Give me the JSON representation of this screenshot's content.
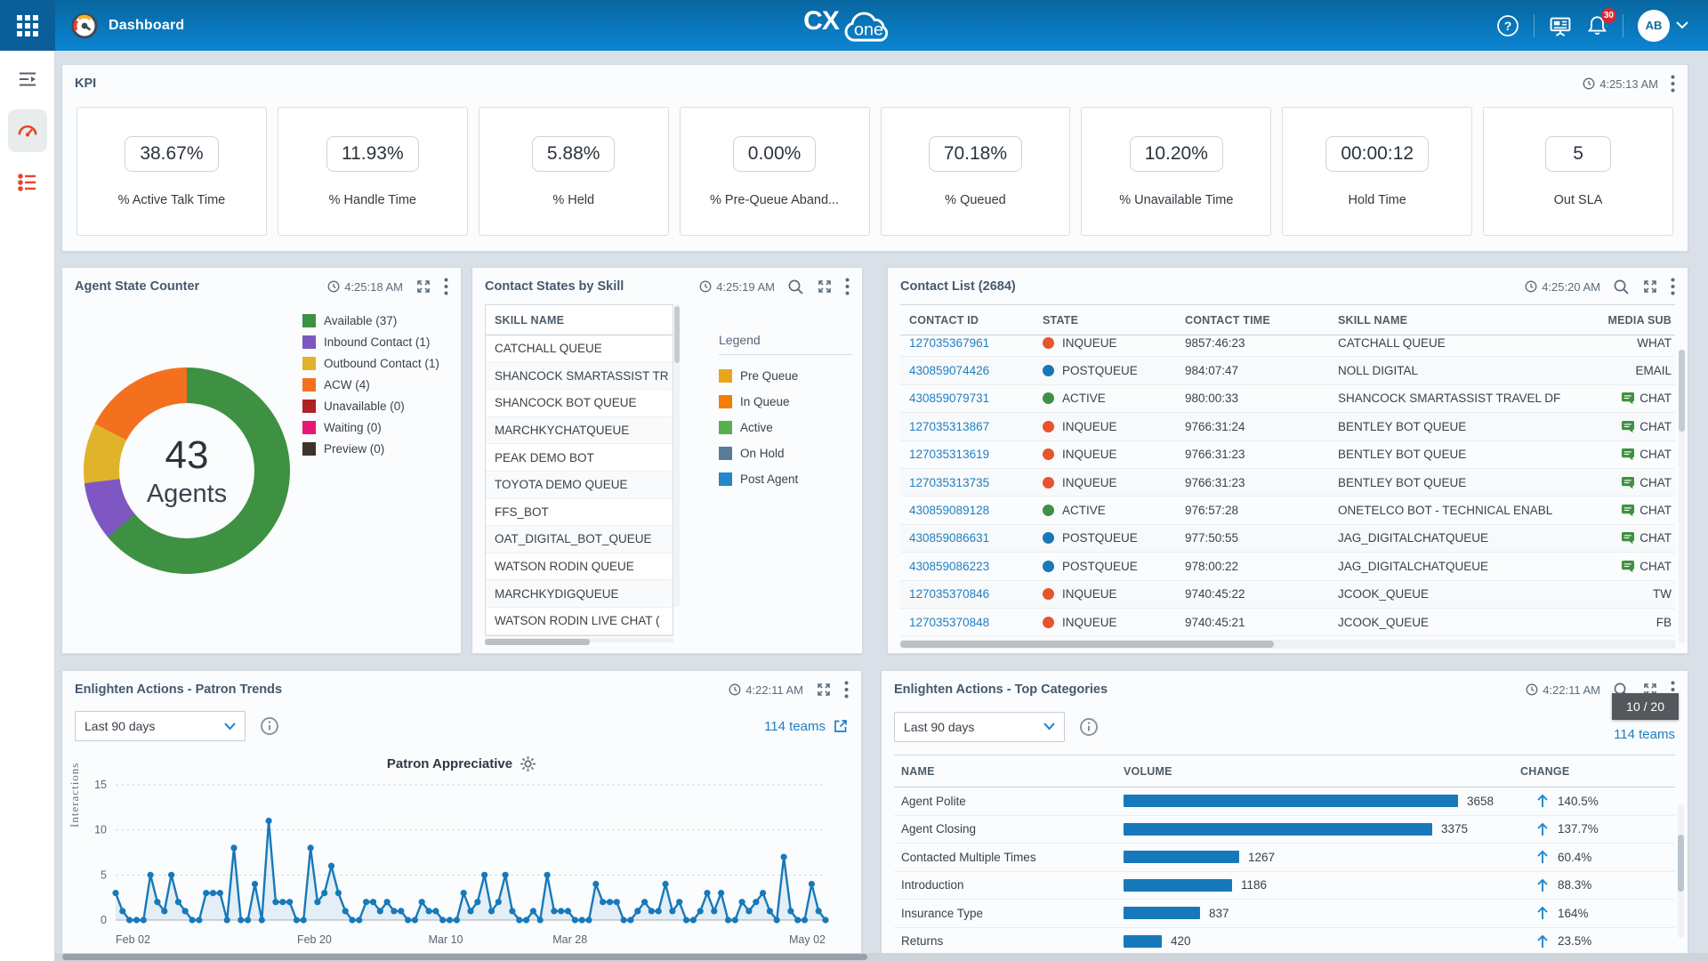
{
  "header": {
    "title": "Dashboard",
    "logo_cx": "CX",
    "logo_one": "one",
    "notification_count": "30",
    "avatar": "AB"
  },
  "kpi_panel": {
    "title": "KPI",
    "timestamp": "4:25:13 AM",
    "cards": [
      {
        "value": "38.67%",
        "label": "% Active Talk Time"
      },
      {
        "value": "11.93%",
        "label": "% Handle Time"
      },
      {
        "value": "5.88%",
        "label": "% Held"
      },
      {
        "value": "0.00%",
        "label": "% Pre-Queue Aband..."
      },
      {
        "value": "70.18%",
        "label": "% Queued"
      },
      {
        "value": "10.20%",
        "label": "% Unavailable Time"
      },
      {
        "value": "00:00:12",
        "label": "Hold Time"
      },
      {
        "value": "5",
        "label": "Out SLA"
      }
    ]
  },
  "agent_panel": {
    "title": "Agent State Counter",
    "timestamp": "4:25:18 AM",
    "center_value": "43",
    "center_label": "Agents",
    "legend": [
      {
        "label": "Available (37)",
        "color": "#3e9142"
      },
      {
        "label": "Inbound Contact (1)",
        "color": "#7e57c2"
      },
      {
        "label": "Outbound Contact (1)",
        "color": "#e0b32a"
      },
      {
        "label": "ACW (4)",
        "color": "#f3701f"
      },
      {
        "label": "Unavailable (0)",
        "color": "#b02025"
      },
      {
        "label": "Waiting (0)",
        "color": "#e81774"
      },
      {
        "label": "Preview (0)",
        "color": "#3b332c"
      }
    ],
    "chart_data": {
      "type": "pie",
      "title": "Agent State Counter",
      "labels": [
        "Available",
        "Inbound Contact",
        "Outbound Contact",
        "ACW",
        "Unavailable",
        "Waiting",
        "Preview"
      ],
      "values": [
        37,
        1,
        1,
        4,
        0,
        0,
        0
      ],
      "center_total": 43,
      "display_segments": [
        {
          "label": "Available",
          "color": "#3e9142",
          "deg": 230
        },
        {
          "label": "Inbound Contact",
          "color": "#7e57c2",
          "deg": 33
        },
        {
          "label": "Outbound Contact",
          "color": "#e0b32a",
          "deg": 34
        },
        {
          "label": "ACW",
          "color": "#f3701f",
          "deg": 63
        }
      ]
    }
  },
  "skill_panel": {
    "title": "Contact States by Skill",
    "timestamp": "4:25:19 AM",
    "column_header": "SKILL NAME",
    "skills": [
      "CATCHALL QUEUE",
      "SHANCOCK SMARTASSIST TR",
      "SHANCOCK BOT QUEUE",
      "MARCHKYCHATQUEUE",
      "PEAK DEMO BOT",
      "TOYOTA DEMO QUEUE",
      "FFS_BOT",
      "OAT_DIGITAL_BOT_QUEUE",
      "WATSON RODIN QUEUE",
      "MARCHKYDIGQUEUE",
      "WATSON RODIN LIVE CHAT ("
    ],
    "legend_title": "Legend",
    "legend": [
      {
        "label": "Pre Queue",
        "color": "#e8a61d"
      },
      {
        "label": "In Queue",
        "color": "#f57d05"
      },
      {
        "label": "Active",
        "color": "#56b04b"
      },
      {
        "label": "On Hold",
        "color": "#5a7b96"
      },
      {
        "label": "Post Agent",
        "color": "#2387c8"
      }
    ]
  },
  "contact_panel": {
    "title": "Contact List (2684)",
    "timestamp": "4:25:20 AM",
    "columns": [
      "CONTACT ID",
      "STATE",
      "CONTACT TIME",
      "SKILL NAME",
      "MEDIA SUB"
    ],
    "state_colors": {
      "INQUEUE": "#e8542b",
      "POSTQUEUE": "#1878b8",
      "ACTIVE": "#3e9142"
    },
    "rows": [
      {
        "id": "127035367961",
        "state": "INQUEUE",
        "time": "9857:46:23",
        "skill": "CATCHALL QUEUE",
        "media": "WHAT",
        "chat_icon": false
      },
      {
        "id": "430859074426",
        "state": "POSTQUEUE",
        "time": "984:07:47",
        "skill": "NOLL DIGITAL",
        "media": "EMAIL",
        "chat_icon": false
      },
      {
        "id": "430859079731",
        "state": "ACTIVE",
        "time": "980:00:33",
        "skill": "SHANCOCK SMARTASSIST TRAVEL DF",
        "media": "CHAT",
        "chat_icon": true
      },
      {
        "id": "127035313867",
        "state": "INQUEUE",
        "time": "9766:31:24",
        "skill": "BENTLEY BOT QUEUE",
        "media": "CHAT",
        "chat_icon": true
      },
      {
        "id": "127035313619",
        "state": "INQUEUE",
        "time": "9766:31:23",
        "skill": "BENTLEY BOT QUEUE",
        "media": "CHAT",
        "chat_icon": true
      },
      {
        "id": "127035313735",
        "state": "INQUEUE",
        "time": "9766:31:23",
        "skill": "BENTLEY BOT QUEUE",
        "media": "CHAT",
        "chat_icon": true
      },
      {
        "id": "430859089128",
        "state": "ACTIVE",
        "time": "976:57:28",
        "skill": "ONETELCO BOT - TECHNICAL ENABL",
        "media": "CHAT",
        "chat_icon": true
      },
      {
        "id": "430859086631",
        "state": "POSTQUEUE",
        "time": "977:50:55",
        "skill": "JAG_DIGITALCHATQUEUE",
        "media": "CHAT",
        "chat_icon": true
      },
      {
        "id": "430859086223",
        "state": "POSTQUEUE",
        "time": "978:00:22",
        "skill": "JAG_DIGITALCHATQUEUE",
        "media": "CHAT",
        "chat_icon": true
      },
      {
        "id": "127035370846",
        "state": "INQUEUE",
        "time": "9740:45:22",
        "skill": "JCOOK_QUEUE",
        "media": "TW",
        "chat_icon": false
      },
      {
        "id": "127035370848",
        "state": "INQUEUE",
        "time": "9740:45:21",
        "skill": "JCOOK_QUEUE",
        "media": "FB",
        "chat_icon": false
      }
    ]
  },
  "trends_panel": {
    "title": "Enlighten Actions - Patron Trends",
    "timestamp": "4:22:11 AM",
    "filter_value": "Last 90 days",
    "teams_link": "114 teams",
    "chart_title": "Patron Appreciative",
    "chart_data": {
      "type": "line",
      "series_name": "Patron Appreciative",
      "ylabel": "Interactions",
      "ylim": [
        0,
        15
      ],
      "yticks": [
        0,
        5,
        10,
        15
      ],
      "xticks": [
        {
          "label": "Feb 02",
          "pos": 0
        },
        {
          "label": "Feb 20",
          "pos": 0.28
        },
        {
          "label": "Mar 10",
          "pos": 0.465
        },
        {
          "label": "Mar 28",
          "pos": 0.64
        },
        {
          "label": "May 02",
          "pos": 1
        }
      ],
      "values": [
        3,
        1,
        0,
        0,
        0,
        5,
        2,
        1,
        5,
        2,
        1,
        0,
        0,
        3,
        3,
        3,
        0,
        8,
        0,
        0,
        4,
        0,
        11,
        2,
        2,
        2,
        0,
        0,
        8,
        2,
        3,
        6,
        3,
        1,
        0,
        0,
        2,
        2,
        1,
        2,
        1,
        1,
        0,
        0,
        2,
        1,
        1,
        0,
        0,
        0,
        3,
        1,
        2,
        5,
        1,
        2,
        5,
        1,
        0,
        0,
        1,
        0,
        5,
        1,
        1,
        1,
        0,
        0,
        0,
        4,
        2,
        2,
        2,
        0,
        0,
        1,
        2,
        1,
        1,
        4,
        1,
        2,
        0,
        0,
        1,
        3,
        1,
        3,
        0,
        0,
        2,
        1,
        2,
        3,
        1,
        0,
        7,
        1,
        0,
        0,
        4,
        1,
        0
      ]
    }
  },
  "categories_panel": {
    "title": "Enlighten Actions - Top Categories",
    "timestamp": "4:22:11 AM",
    "filter_value": "Last 90 days",
    "teams_link": "114 teams",
    "tooltip": "10 / 20",
    "columns": [
      "NAME",
      "VOLUME",
      "CHANGE"
    ],
    "bar_color": "#1779ba",
    "chart_data": {
      "type": "bar",
      "categories": [
        "Agent Polite",
        "Agent Closing",
        "Contacted Multiple Times",
        "Introduction",
        "Insurance Type",
        "Returns"
      ],
      "values": [
        3658,
        3375,
        1267,
        1186,
        837,
        420
      ],
      "changes": [
        "140.5%",
        "137.7%",
        "60.4%",
        "88.3%",
        "164%",
        "23.5%"
      ],
      "change_direction": "up"
    }
  }
}
